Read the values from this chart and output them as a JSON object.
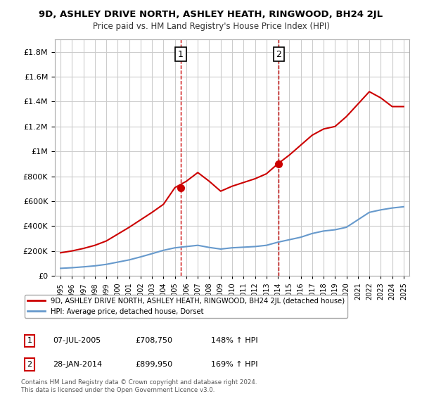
{
  "title": "9D, ASHLEY DRIVE NORTH, ASHLEY HEATH, RINGWOOD, BH24 2JL",
  "subtitle": "Price paid vs. HM Land Registry's House Price Index (HPI)",
  "legend_line1": "9D, ASHLEY DRIVE NORTH, ASHLEY HEATH, RINGWOOD, BH24 2JL (detached house)",
  "legend_line2": "HPI: Average price, detached house, Dorset",
  "annotation1_label": "1",
  "annotation1_date": "07-JUL-2005",
  "annotation1_price": "£708,750",
  "annotation1_hpi": "148% ↑ HPI",
  "annotation2_label": "2",
  "annotation2_date": "28-JAN-2014",
  "annotation2_price": "£899,950",
  "annotation2_hpi": "169% ↑ HPI",
  "footer1": "Contains HM Land Registry data © Crown copyright and database right 2024.",
  "footer2": "This data is licensed under the Open Government Licence v3.0.",
  "property_color": "#cc0000",
  "hpi_color": "#6699cc",
  "background_color": "#ffffff",
  "grid_color": "#cccccc",
  "ylim_max": 1900000,
  "sale1_x": 2005.5,
  "sale1_y": 708750,
  "sale2_x": 2014.08,
  "sale2_y": 899950,
  "vline1_x": 2005.5,
  "vline2_x": 2014.08,
  "hpi_years": [
    1995,
    1996,
    1997,
    1998,
    1999,
    2000,
    2001,
    2002,
    2003,
    2004,
    2005,
    2006,
    2007,
    2008,
    2009,
    2010,
    2011,
    2012,
    2013,
    2014,
    2015,
    2016,
    2017,
    2018,
    2019,
    2020,
    2021,
    2022,
    2023,
    2024,
    2025
  ],
  "hpi_values": [
    60000,
    65000,
    72000,
    80000,
    92000,
    110000,
    128000,
    152000,
    178000,
    205000,
    225000,
    235000,
    245000,
    228000,
    215000,
    225000,
    230000,
    235000,
    245000,
    270000,
    290000,
    310000,
    340000,
    360000,
    370000,
    390000,
    450000,
    510000,
    530000,
    545000,
    555000
  ],
  "prop_years": [
    1995,
    1996,
    1997,
    1998,
    1999,
    2000,
    2001,
    2002,
    2003,
    2004,
    2005,
    2006,
    2007,
    2008,
    2009,
    2010,
    2011,
    2012,
    2013,
    2014,
    2015,
    2016,
    2017,
    2018,
    2019,
    2020,
    2021,
    2022,
    2023,
    2024,
    2025
  ],
  "prop_values": [
    185000,
    200000,
    220000,
    245000,
    280000,
    335000,
    390000,
    450000,
    510000,
    575000,
    708750,
    760000,
    830000,
    760000,
    680000,
    720000,
    750000,
    780000,
    820000,
    899950,
    970000,
    1050000,
    1130000,
    1180000,
    1200000,
    1280000,
    1380000,
    1480000,
    1430000,
    1360000,
    1360000
  ],
  "yticks": [
    0,
    200000,
    400000,
    600000,
    800000,
    1000000,
    1200000,
    1400000,
    1600000,
    1800000
  ],
  "xlim_min": 1994.5,
  "xlim_max": 2025.5
}
